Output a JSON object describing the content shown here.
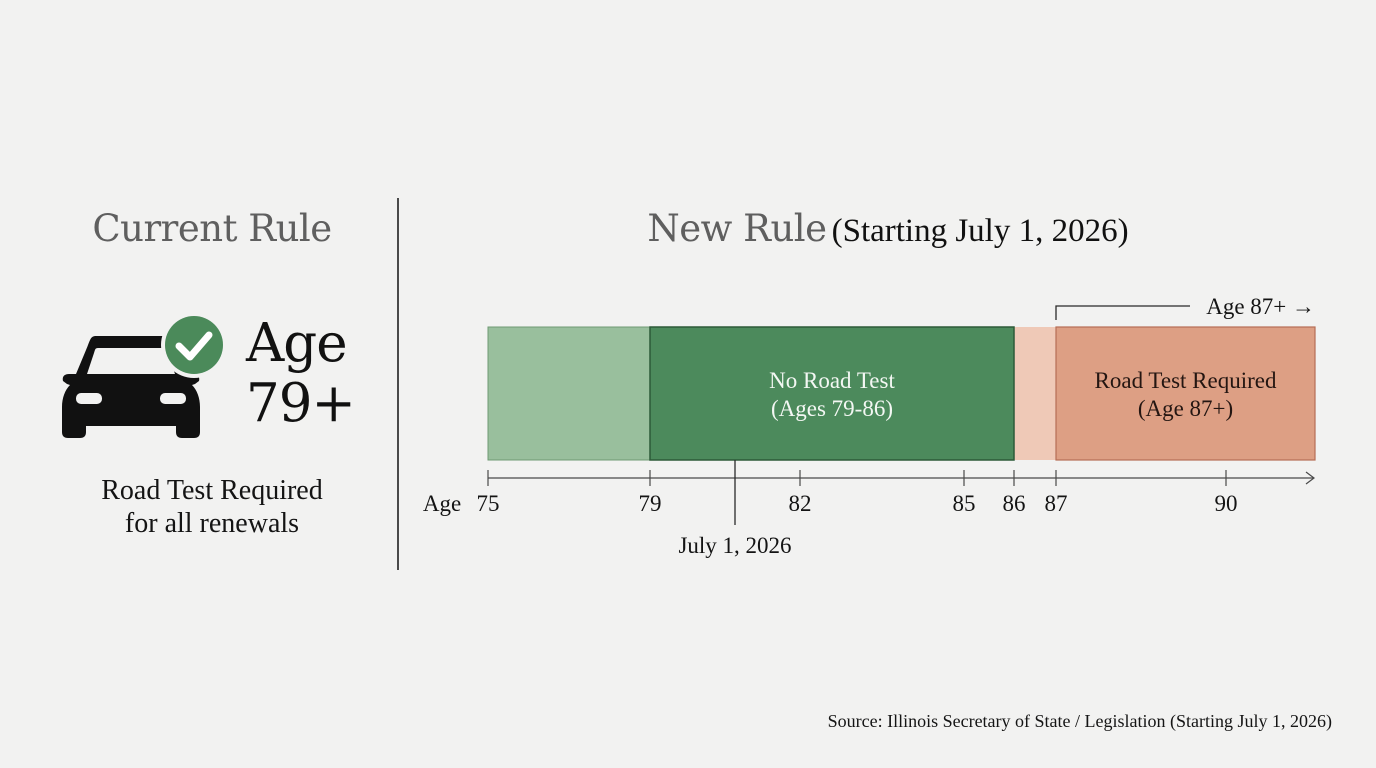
{
  "current_rule": {
    "title": "Current Rule",
    "age_line1": "Age",
    "age_line2": "79+",
    "desc_line1": "Road Test Required",
    "desc_line2": "for all renewals",
    "icon": "car-with-checkmark-icon"
  },
  "new_rule": {
    "title": "New Rule",
    "subtitle": "(Starting July 1, 2026)",
    "age_bracket_label": "Age 87+ →",
    "segments": [
      {
        "from": 75,
        "to": 79,
        "label_line1": "",
        "label_line2": "",
        "color": "#99bf9d"
      },
      {
        "from": 79,
        "to": 86,
        "label_line1": "No Road Test",
        "label_line2": "(Ages 79-86)",
        "color": "#4c8a5c"
      },
      {
        "from": 86,
        "to": 87,
        "label_line1": "",
        "label_line2": "",
        "color": "#efc9b7"
      },
      {
        "from": 87,
        "to": 93.4,
        "label_line1": "Road Test Required",
        "label_line2": "(Age 87+)",
        "color": "#dd9f84"
      }
    ],
    "axis": {
      "prefix": "Age",
      "ticks": [
        "75",
        "79",
        "82",
        "85",
        "86",
        "87",
        "90"
      ],
      "min": 75,
      "max": 93.4
    },
    "marker": {
      "label": "July 1, 2026",
      "at": 80.7
    }
  },
  "colors": {
    "title_gray": "#5f5f5f",
    "text": "#141414",
    "check_green": "#4b8a5a"
  },
  "source": "Source: Illinois Secretary of State / Legislation (Starting July 1, 2026)"
}
